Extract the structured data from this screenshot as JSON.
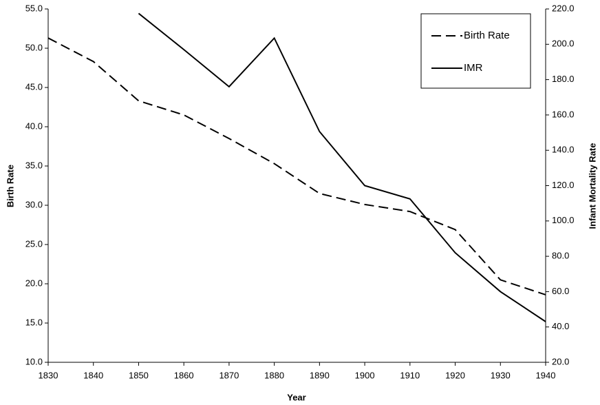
{
  "chart_data": {
    "type": "line",
    "x_label": "Year",
    "y_label": "Birth Rate",
    "y2_label": "Infant Mortality Rate",
    "x": [
      1830,
      1840,
      1850,
      1860,
      1870,
      1880,
      1890,
      1900,
      1910,
      1920,
      1930,
      1940
    ],
    "series": [
      {
        "name": "Birth Rate",
        "color": "#000000",
        "line_style": "dashed",
        "axis": "y",
        "values": [
          51.3,
          48.3,
          43.3,
          41.5,
          38.5,
          35.3,
          31.5,
          30.1,
          29.2,
          26.9,
          20.5,
          18.6
        ]
      },
      {
        "name": "IMR",
        "color": "#000000",
        "line_style": "solid",
        "axis": "y2",
        "values": [
          null,
          null,
          217.5,
          197,
          176,
          203.5,
          150.6,
          120,
          112.5,
          82,
          60,
          43
        ]
      }
    ],
    "xlim": [
      1830,
      1940
    ],
    "xticks": [
      1830,
      1840,
      1850,
      1860,
      1870,
      1880,
      1890,
      1900,
      1910,
      1920,
      1930,
      1940
    ],
    "ylim": [
      10,
      55
    ],
    "yticks": [
      {
        "value": 10,
        "label": "10.0"
      },
      {
        "value": 15,
        "label": "15.0"
      },
      {
        "value": 20,
        "label": "20.0"
      },
      {
        "value": 25,
        "label": "25.0"
      },
      {
        "value": 30,
        "label": "30.0"
      },
      {
        "value": 35,
        "label": "35.0"
      },
      {
        "value": 40,
        "label": "40.0"
      },
      {
        "value": 45,
        "label": "45.0"
      },
      {
        "value": 50,
        "label": "50.0"
      },
      {
        "value": 55,
        "label": "55.0"
      }
    ],
    "y2lim": [
      20,
      220
    ],
    "y2ticks": [
      {
        "value": 20,
        "label": "20.0"
      },
      {
        "value": 40,
        "label": "40.0"
      },
      {
        "value": 60,
        "label": "60.0"
      },
      {
        "value": 80,
        "label": "80.0"
      },
      {
        "value": 100,
        "label": "100.0"
      },
      {
        "value": 120,
        "label": "120.0"
      },
      {
        "value": 140,
        "label": "140.0"
      },
      {
        "value": 160,
        "label": "160.0"
      },
      {
        "value": 180,
        "label": "180.0"
      },
      {
        "value": 200,
        "label": "200.0"
      },
      {
        "value": 220,
        "label": "220.0"
      }
    ],
    "grid": false,
    "legend": "upper right"
  }
}
